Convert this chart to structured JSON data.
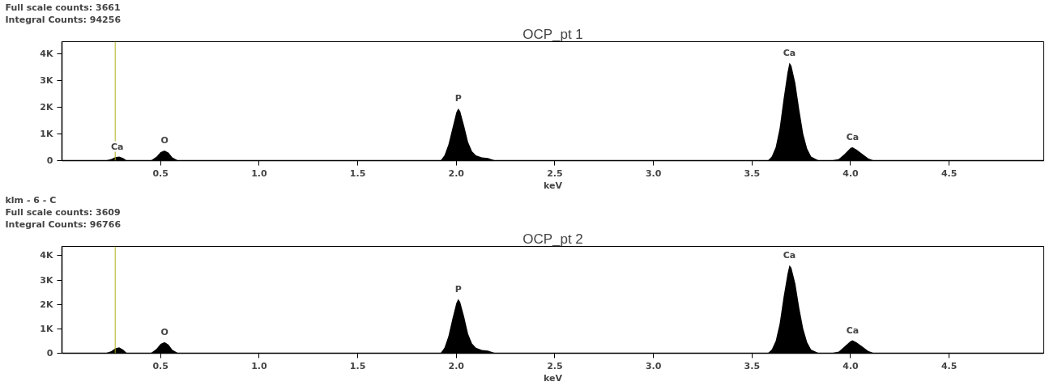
{
  "chart_data": [
    {
      "type": "area",
      "title": "OCP_pt 1",
      "xlabel": "keV",
      "annotations": [
        "Full scale counts: 3661",
        "Integral Counts: 94256",
        {
          "text": "Ca",
          "x": 0.28,
          "y": 150
        },
        {
          "text": "O",
          "x": 0.52,
          "y": 380
        },
        {
          "text": "P",
          "x": 2.01,
          "y": 1950
        },
        {
          "text": "Ca",
          "x": 3.69,
          "y": 3661
        },
        {
          "text": "Ca",
          "x": 4.01,
          "y": 500
        }
      ],
      "xlim": [
        0,
        4.98
      ],
      "ylim": [
        0,
        4450
      ],
      "xticks": [
        {
          "value": 0.5,
          "label": "0.5"
        },
        {
          "value": 1.0,
          "label": "1.0"
        },
        {
          "value": 1.5,
          "label": "1.5"
        },
        {
          "value": 2.0,
          "label": "2.0"
        },
        {
          "value": 2.5,
          "label": "2.5"
        },
        {
          "value": 3.0,
          "label": "3.0"
        },
        {
          "value": 3.5,
          "label": "3.5"
        },
        {
          "value": 4.0,
          "label": "4.0"
        },
        {
          "value": 4.5,
          "label": "4.5"
        }
      ],
      "yticks": [
        {
          "value": 0,
          "label": "0"
        },
        {
          "value": 1000,
          "label": "1K"
        },
        {
          "value": 2000,
          "label": "2K"
        },
        {
          "value": 3000,
          "label": "3K"
        },
        {
          "value": 4000,
          "label": "4K"
        }
      ],
      "grid": false,
      "ref_lines": [
        {
          "axis": "x",
          "value": 0.27,
          "color": "#b0b020"
        }
      ],
      "series": [
        {
          "color": "#000000",
          "x": [
            0,
            0.22,
            0.25,
            0.27,
            0.29,
            0.31,
            0.33,
            0.45,
            0.48,
            0.5,
            0.52,
            0.54,
            0.56,
            0.59,
            1.92,
            1.94,
            1.96,
            1.98,
            2.0,
            2.01,
            2.02,
            2.04,
            2.06,
            2.08,
            2.1,
            2.13,
            2.16,
            2.2,
            3.58,
            3.6,
            3.62,
            3.64,
            3.66,
            3.68,
            3.69,
            3.7,
            3.72,
            3.74,
            3.76,
            3.78,
            3.8,
            3.84,
            3.9,
            3.94,
            3.97,
            4.0,
            4.01,
            4.03,
            4.06,
            4.09,
            4.12,
            4.98
          ],
          "values": [
            0,
            0,
            60,
            130,
            150,
            100,
            0,
            0,
            150,
            320,
            380,
            300,
            120,
            0,
            0,
            200,
            600,
            1200,
            1800,
            1950,
            1850,
            1300,
            700,
            350,
            200,
            120,
            100,
            0,
            0,
            150,
            500,
            1200,
            2300,
            3300,
            3660,
            3550,
            2900,
            1900,
            1000,
            450,
            150,
            0,
            0,
            60,
            250,
            480,
            500,
            420,
            250,
            80,
            0,
            0
          ]
        }
      ]
    },
    {
      "type": "area",
      "title": "OCP_pt 2",
      "xlabel": "keV",
      "annotations": [
        "klm - 6 - C",
        "Full scale counts: 3609",
        "Integral Counts: 96766",
        {
          "text": "O",
          "x": 0.52,
          "y": 460
        },
        {
          "text": "P",
          "x": 2.01,
          "y": 2220
        },
        {
          "text": "Ca",
          "x": 3.69,
          "y": 3609
        },
        {
          "text": "Ca",
          "x": 4.01,
          "y": 530
        }
      ],
      "xlim": [
        0,
        4.98
      ],
      "ylim": [
        0,
        4380
      ],
      "xticks": [
        {
          "value": 0.5,
          "label": "0.5"
        },
        {
          "value": 1.0,
          "label": "1.0"
        },
        {
          "value": 1.5,
          "label": "1.5"
        },
        {
          "value": 2.0,
          "label": "2.0"
        },
        {
          "value": 2.5,
          "label": "2.5"
        },
        {
          "value": 3.0,
          "label": "3.0"
        },
        {
          "value": 3.5,
          "label": "3.5"
        },
        {
          "value": 4.0,
          "label": "4.0"
        },
        {
          "value": 4.5,
          "label": "4.5"
        }
      ],
      "yticks": [
        {
          "value": 0,
          "label": "0"
        },
        {
          "value": 1000,
          "label": "1K"
        },
        {
          "value": 2000,
          "label": "2K"
        },
        {
          "value": 3000,
          "label": "3K"
        },
        {
          "value": 4000,
          "label": "4K"
        }
      ],
      "grid": false,
      "ref_lines": [
        {
          "axis": "x",
          "value": 0.27,
          "color": "#b0b020"
        }
      ],
      "series": [
        {
          "color": "#000000",
          "x": [
            0,
            0.22,
            0.25,
            0.27,
            0.29,
            0.31,
            0.33,
            0.45,
            0.48,
            0.5,
            0.52,
            0.54,
            0.56,
            0.59,
            1.92,
            1.94,
            1.96,
            1.98,
            2.0,
            2.01,
            2.02,
            2.04,
            2.06,
            2.08,
            2.1,
            2.13,
            2.16,
            2.2,
            3.58,
            3.6,
            3.62,
            3.64,
            3.66,
            3.68,
            3.69,
            3.7,
            3.72,
            3.74,
            3.76,
            3.78,
            3.8,
            3.84,
            3.9,
            3.94,
            3.97,
            4.0,
            4.01,
            4.03,
            4.06,
            4.09,
            4.12,
            4.98
          ],
          "values": [
            0,
            0,
            80,
            200,
            240,
            150,
            0,
            0,
            180,
            380,
            460,
            360,
            140,
            0,
            0,
            220,
            700,
            1400,
            2050,
            2220,
            2100,
            1500,
            800,
            400,
            220,
            130,
            110,
            0,
            0,
            150,
            500,
            1200,
            2300,
            3250,
            3610,
            3500,
            2850,
            1850,
            1000,
            450,
            150,
            0,
            0,
            70,
            280,
            500,
            530,
            450,
            270,
            90,
            0,
            0
          ]
        }
      ]
    }
  ]
}
